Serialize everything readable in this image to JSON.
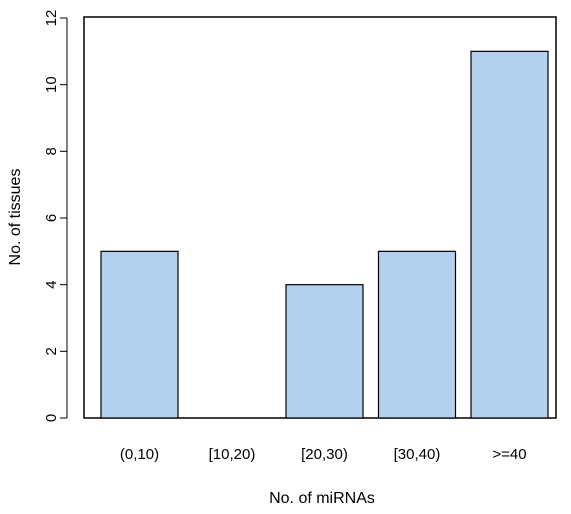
{
  "chart_data": {
    "type": "bar",
    "categories": [
      "(0,10)",
      "[10,20)",
      "[20,30)",
      "[30,40)",
      ">=40"
    ],
    "values": [
      5,
      0,
      4,
      5,
      11
    ],
    "xlabel": "No. of miRNAs",
    "ylabel": "No. of tissues",
    "ylim": [
      0,
      12
    ],
    "yticks": [
      0,
      2,
      4,
      6,
      8,
      10,
      12
    ],
    "bar_color": "#b3d1ef",
    "edge_color": "#000000",
    "grid": false,
    "legend": "none"
  }
}
